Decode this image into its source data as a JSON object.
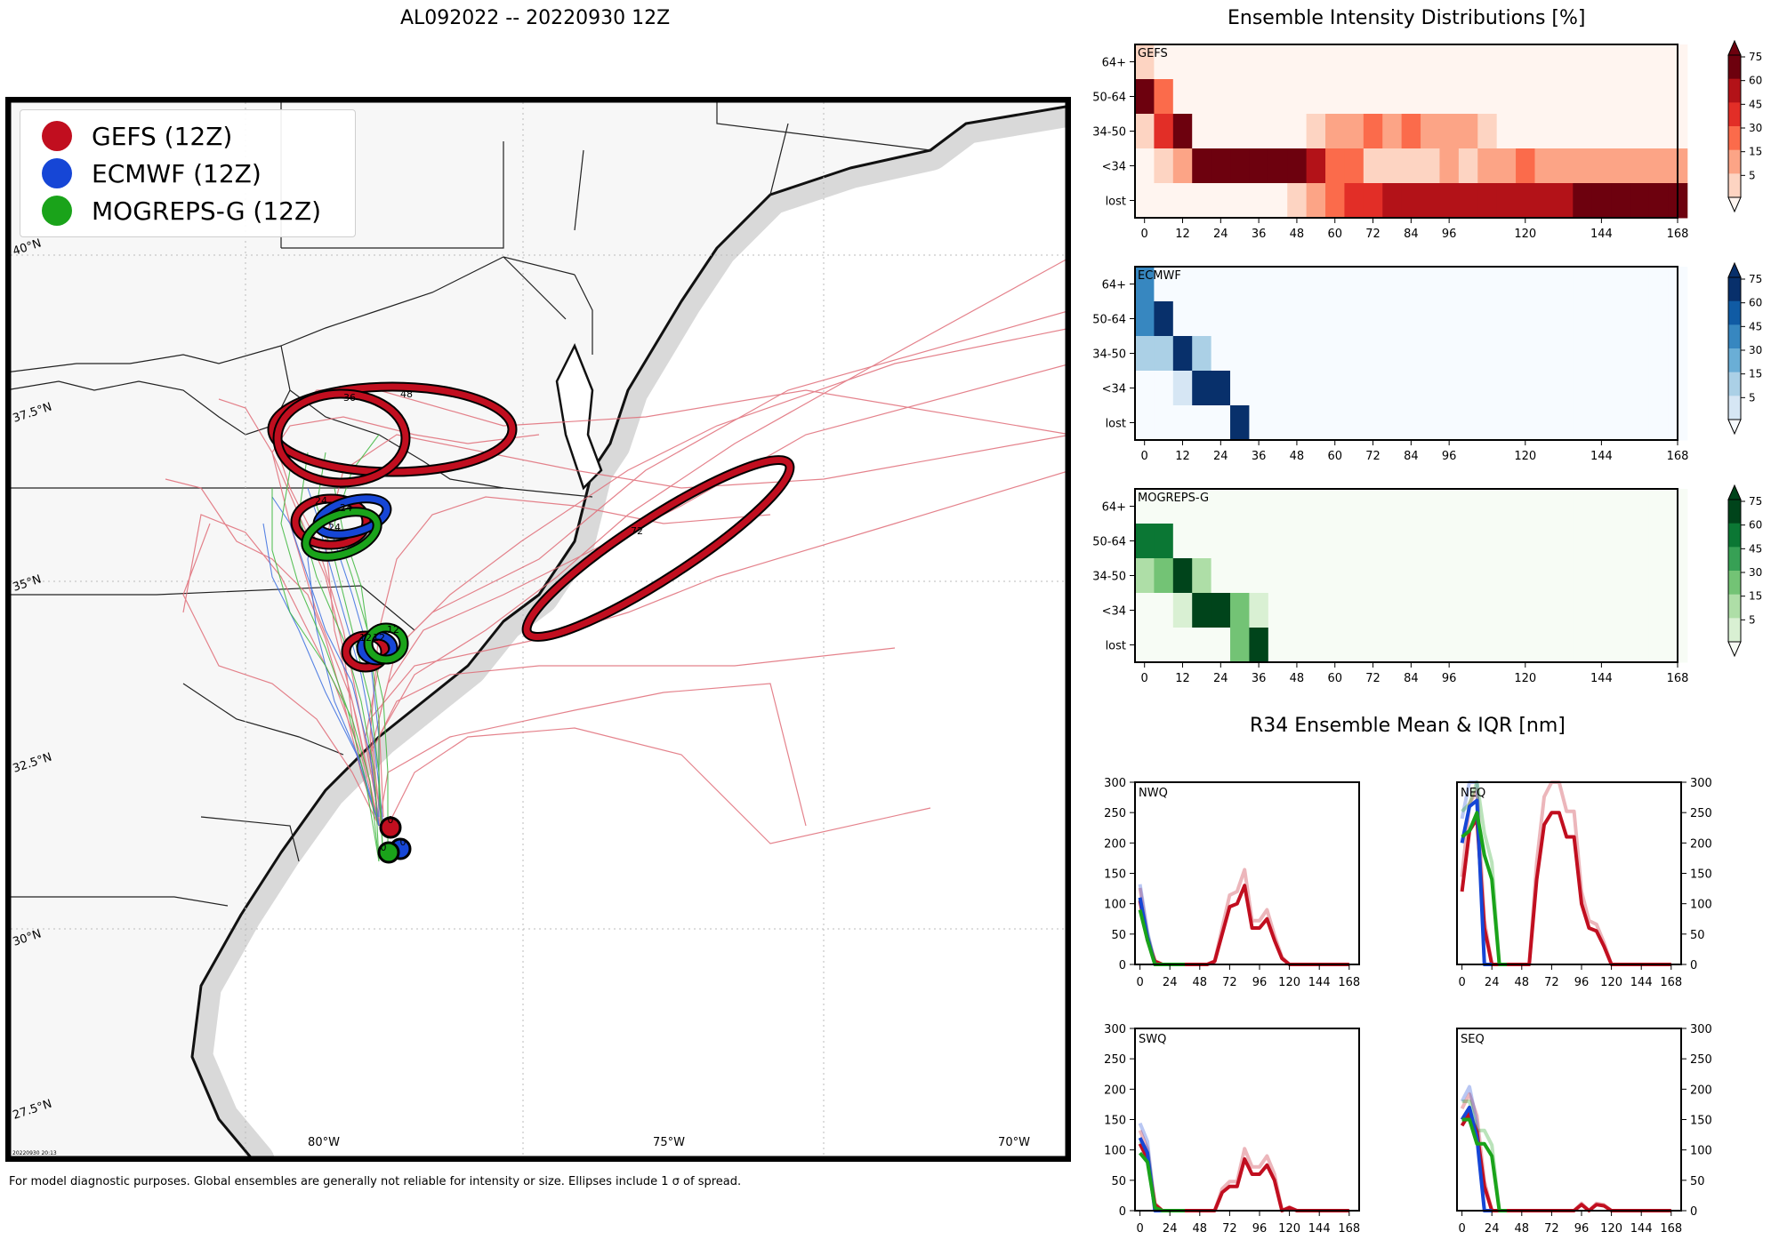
{
  "map": {
    "title": "AL092022 -- 20220930 12Z",
    "footnote": "For model diagnostic purposes. Global ensembles are generally not reliable for intensity or size. Ellipses include 1 σ of spread.",
    "timestamp": "20220930 20:13",
    "legend": [
      {
        "label": "GEFS (12Z)",
        "color": "#c10e1f"
      },
      {
        "label": "ECMWF (12Z)",
        "color": "#1646d6"
      },
      {
        "label": "MOGREPS-G (12Z)",
        "color": "#1aa31a"
      }
    ],
    "lat_labels": [
      "40°N",
      "37.5°N",
      "35°N",
      "32.5°N",
      "30°N",
      "27.5°N"
    ],
    "lon_labels": [
      "80°W",
      "75°W",
      "70°W"
    ],
    "ellipse_labels": {
      "gefs": [
        "0",
        "12",
        "24",
        "36",
        "48",
        "72"
      ],
      "ecmwf": [
        "0",
        "12",
        "24"
      ],
      "mogreps": [
        "0",
        "12",
        "24"
      ]
    }
  },
  "intensity": {
    "title": "Ensemble Intensity Distributions [%]",
    "ylabels": [
      "64+",
      "50-64",
      "34-50",
      "<34",
      "lost"
    ],
    "xticks": [
      "0",
      "12",
      "24",
      "36",
      "48",
      "60",
      "72",
      "84",
      "96",
      "120",
      "144",
      "168"
    ],
    "cbar_ticks": [
      "75",
      "60",
      "45",
      "30",
      "15",
      "5"
    ],
    "panels": [
      {
        "name": "GEFS",
        "palette": [
          "#fff5f0",
          "#fdd4c2",
          "#fca486",
          "#fb6b4b",
          "#e22e27",
          "#b31218",
          "#6d010e"
        ]
      },
      {
        "name": "ECMWF",
        "palette": [
          "#f7fbff",
          "#d6e6f4",
          "#abd0e6",
          "#6aaed6",
          "#3787c0",
          "#105ba4",
          "#08306b"
        ]
      },
      {
        "name": "MOGREPS-G",
        "palette": [
          "#f7fcf5",
          "#d9f0d3",
          "#aedea7",
          "#73c375",
          "#37a055",
          "#0b7734",
          "#00441b"
        ]
      }
    ]
  },
  "r34": {
    "title": "R34 Ensemble Mean & IQR [nm]",
    "yticks": [
      "300",
      "250",
      "200",
      "150",
      "100",
      "50",
      "0"
    ],
    "xticks": [
      "0",
      "24",
      "48",
      "72",
      "96",
      "120",
      "144",
      "168"
    ],
    "quadrants": [
      "NWQ",
      "NEQ",
      "SWQ",
      "SEQ"
    ]
  },
  "chart_data": [
    {
      "type": "heatmap",
      "title": "Ensemble Intensity Distributions [%] - GEFS",
      "x": [
        0,
        6,
        12,
        18,
        24,
        30,
        36,
        42,
        48,
        54,
        60,
        66,
        72,
        78,
        84,
        90,
        96,
        102,
        108,
        114,
        120,
        126,
        132,
        138,
        144,
        150,
        156,
        162,
        168
      ],
      "y": [
        "64+",
        "50-64",
        "34-50",
        "<34",
        "lost"
      ],
      "values": [
        [
          10,
          0,
          0,
          0,
          0,
          0,
          0,
          0,
          0,
          0,
          0,
          0,
          0,
          0,
          0,
          0,
          0,
          0,
          0,
          0,
          0,
          0,
          0,
          0,
          0,
          0,
          0,
          0,
          0
        ],
        [
          85,
          40,
          0,
          0,
          0,
          0,
          0,
          0,
          0,
          0,
          0,
          0,
          0,
          0,
          0,
          0,
          0,
          0,
          0,
          0,
          0,
          0,
          0,
          0,
          0,
          0,
          0,
          0,
          0
        ],
        [
          5,
          55,
          75,
          0,
          0,
          0,
          0,
          0,
          0,
          10,
          25,
          25,
          35,
          25,
          40,
          25,
          25,
          25,
          10,
          0,
          0,
          0,
          0,
          0,
          0,
          0,
          0,
          0,
          0
        ],
        [
          0,
          5,
          25,
          85,
          85,
          85,
          85,
          85,
          85,
          60,
          40,
          40,
          10,
          10,
          10,
          10,
          25,
          10,
          25,
          25,
          40,
          25,
          25,
          25,
          25,
          25,
          25,
          25,
          25
        ],
        [
          0,
          0,
          0,
          0,
          0,
          0,
          0,
          0,
          5,
          25,
          40,
          50,
          55,
          60,
          60,
          60,
          60,
          60,
          60,
          60,
          60,
          60,
          60,
          75,
          75,
          75,
          75,
          75,
          75
        ]
      ],
      "colorbar": {
        "label": "%",
        "ticks": [
          5,
          15,
          30,
          45,
          60,
          75
        ]
      }
    },
    {
      "type": "heatmap",
      "title": "Ensemble Intensity Distributions [%] - ECMWF",
      "x": [
        0,
        6,
        12,
        18,
        24,
        30,
        36,
        42,
        48,
        54,
        60,
        66,
        72,
        78,
        84,
        90,
        96,
        102,
        108,
        114,
        120,
        126,
        132,
        138,
        144,
        150,
        156,
        162,
        168
      ],
      "y": [
        "64+",
        "50-64",
        "34-50",
        "<34",
        "lost"
      ],
      "values": [
        [
          45,
          0,
          0,
          0,
          0,
          0,
          0,
          0,
          0,
          0,
          0,
          0,
          0,
          0,
          0,
          0,
          0,
          0,
          0,
          0,
          0,
          0,
          0,
          0,
          0,
          0,
          0,
          0,
          0
        ],
        [
          45,
          75,
          0,
          0,
          0,
          0,
          0,
          0,
          0,
          0,
          0,
          0,
          0,
          0,
          0,
          0,
          0,
          0,
          0,
          0,
          0,
          0,
          0,
          0,
          0,
          0,
          0,
          0,
          0
        ],
        [
          15,
          15,
          80,
          25,
          0,
          0,
          0,
          0,
          0,
          0,
          0,
          0,
          0,
          0,
          0,
          0,
          0,
          0,
          0,
          0,
          0,
          0,
          0,
          0,
          0,
          0,
          0,
          0,
          0
        ],
        [
          0,
          0,
          5,
          80,
          80,
          0,
          0,
          0,
          0,
          0,
          0,
          0,
          0,
          0,
          0,
          0,
          0,
          0,
          0,
          0,
          0,
          0,
          0,
          0,
          0,
          0,
          0,
          0,
          0
        ],
        [
          0,
          0,
          0,
          0,
          0,
          85,
          0,
          0,
          0,
          0,
          0,
          0,
          0,
          0,
          0,
          0,
          0,
          0,
          0,
          0,
          0,
          0,
          0,
          0,
          0,
          0,
          0,
          0,
          0
        ]
      ],
      "colorbar": {
        "label": "%",
        "ticks": [
          5,
          15,
          30,
          45,
          60,
          75
        ]
      }
    },
    {
      "type": "heatmap",
      "title": "Ensemble Intensity Distributions [%] - MOGREPS-G",
      "x": [
        0,
        6,
        12,
        18,
        24,
        30,
        36,
        42,
        48,
        54,
        60,
        66,
        72,
        78,
        84,
        90,
        96,
        102,
        108,
        114,
        120,
        126,
        132,
        138,
        144,
        150,
        156,
        162,
        168
      ],
      "y": [
        "64+",
        "50-64",
        "34-50",
        "<34",
        "lost"
      ],
      "values": [
        [
          0,
          0,
          0,
          0,
          0,
          0,
          0,
          0,
          0,
          0,
          0,
          0,
          0,
          0,
          0,
          0,
          0,
          0,
          0,
          0,
          0,
          0,
          0,
          0,
          0,
          0,
          0,
          0,
          0
        ],
        [
          65,
          65,
          0,
          0,
          0,
          0,
          0,
          0,
          0,
          0,
          0,
          0,
          0,
          0,
          0,
          0,
          0,
          0,
          0,
          0,
          0,
          0,
          0,
          0,
          0,
          0,
          0,
          0,
          0
        ],
        [
          20,
          35,
          85,
          20,
          0,
          0,
          0,
          0,
          0,
          0,
          0,
          0,
          0,
          0,
          0,
          0,
          0,
          0,
          0,
          0,
          0,
          0,
          0,
          0,
          0,
          0,
          0,
          0,
          0
        ],
        [
          0,
          0,
          5,
          85,
          85,
          35,
          10,
          0,
          0,
          0,
          0,
          0,
          0,
          0,
          0,
          0,
          0,
          0,
          0,
          0,
          0,
          0,
          0,
          0,
          0,
          0,
          0,
          0,
          0
        ],
        [
          0,
          0,
          0,
          0,
          0,
          35,
          85,
          0,
          0,
          0,
          0,
          0,
          0,
          0,
          0,
          0,
          0,
          0,
          0,
          0,
          0,
          0,
          0,
          0,
          0,
          0,
          0,
          0,
          0
        ]
      ],
      "colorbar": {
        "label": "%",
        "ticks": [
          5,
          15,
          30,
          45,
          60,
          75
        ]
      }
    },
    {
      "type": "line",
      "title": "R34 Ensemble Mean & IQR [nm] - NWQ",
      "xlim": [
        0,
        168
      ],
      "ylim": [
        0,
        300
      ],
      "series": [
        {
          "name": "GEFS",
          "color": "#c10e1f",
          "x": [
            0,
            6,
            12,
            18,
            24,
            30,
            36,
            42,
            48,
            54,
            60,
            66,
            72,
            78,
            84,
            90,
            96,
            102,
            108,
            114,
            120,
            126,
            132,
            138,
            144,
            150,
            156,
            162,
            168
          ],
          "values": [
            105,
            40,
            5,
            0,
            0,
            0,
            0,
            0,
            0,
            0,
            5,
            50,
            95,
            100,
            130,
            60,
            60,
            75,
            40,
            10,
            0,
            0,
            0,
            0,
            0,
            0,
            0,
            0,
            0
          ]
        },
        {
          "name": "ECMWF",
          "color": "#1646d6",
          "x": [
            0,
            6,
            12,
            18,
            24,
            30
          ],
          "values": [
            110,
            45,
            0,
            0,
            0,
            0
          ]
        },
        {
          "name": "MOGREPS-G",
          "color": "#1aa31a",
          "x": [
            0,
            6,
            12,
            18,
            24,
            30,
            36
          ],
          "values": [
            90,
            40,
            0,
            0,
            0,
            0,
            0
          ]
        }
      ]
    },
    {
      "type": "line",
      "title": "R34 Ensemble Mean & IQR [nm] - NEQ",
      "xlim": [
        0,
        168
      ],
      "ylim": [
        0,
        300
      ],
      "series": [
        {
          "name": "GEFS",
          "color": "#c10e1f",
          "x": [
            0,
            6,
            12,
            18,
            24,
            30,
            36,
            42,
            48,
            54,
            60,
            66,
            72,
            78,
            84,
            90,
            96,
            102,
            108,
            114,
            120,
            126,
            132,
            138,
            144,
            150,
            156,
            162,
            168
          ],
          "values": [
            120,
            220,
            240,
            60,
            0,
            0,
            0,
            0,
            0,
            0,
            140,
            230,
            250,
            250,
            210,
            210,
            100,
            60,
            55,
            30,
            0,
            0,
            0,
            0,
            0,
            0,
            0,
            0,
            0
          ]
        },
        {
          "name": "ECMWF",
          "color": "#1646d6",
          "x": [
            0,
            6,
            12,
            18,
            24
          ],
          "values": [
            200,
            260,
            270,
            0,
            0
          ]
        },
        {
          "name": "MOGREPS-G",
          "color": "#1aa31a",
          "x": [
            0,
            6,
            12,
            18,
            24,
            30,
            36
          ],
          "values": [
            210,
            220,
            250,
            180,
            140,
            0,
            0
          ]
        }
      ]
    },
    {
      "type": "line",
      "title": "R34 Ensemble Mean & IQR [nm] - SWQ",
      "xlim": [
        0,
        168
      ],
      "ylim": [
        0,
        300
      ],
      "series": [
        {
          "name": "GEFS",
          "color": "#c10e1f",
          "x": [
            0,
            6,
            12,
            18,
            24,
            30,
            36,
            42,
            48,
            54,
            60,
            66,
            72,
            78,
            84,
            90,
            96,
            102,
            108,
            114,
            120,
            126,
            132,
            138,
            144,
            150,
            156,
            162,
            168
          ],
          "values": [
            110,
            85,
            10,
            0,
            0,
            0,
            0,
            0,
            0,
            0,
            0,
            30,
            40,
            40,
            85,
            60,
            60,
            75,
            50,
            0,
            5,
            0,
            0,
            0,
            0,
            0,
            0,
            0,
            0
          ]
        },
        {
          "name": "ECMWF",
          "color": "#1646d6",
          "x": [
            0,
            6,
            12,
            18,
            24,
            30
          ],
          "values": [
            120,
            95,
            0,
            0,
            0,
            0
          ]
        },
        {
          "name": "MOGREPS-G",
          "color": "#1aa31a",
          "x": [
            0,
            6,
            12,
            18,
            24,
            30,
            36
          ],
          "values": [
            95,
            80,
            5,
            0,
            0,
            0,
            0
          ]
        }
      ]
    },
    {
      "type": "line",
      "title": "R34 Ensemble Mean & IQR [nm] - SEQ",
      "xlim": [
        0,
        168
      ],
      "ylim": [
        0,
        300
      ],
      "series": [
        {
          "name": "GEFS",
          "color": "#c10e1f",
          "x": [
            0,
            6,
            12,
            18,
            24,
            30,
            36,
            42,
            48,
            54,
            60,
            66,
            72,
            78,
            84,
            90,
            96,
            102,
            108,
            114,
            120,
            126,
            132,
            138,
            144,
            150,
            156,
            162,
            168
          ],
          "values": [
            140,
            160,
            130,
            40,
            0,
            0,
            0,
            0,
            0,
            0,
            0,
            0,
            0,
            0,
            0,
            0,
            10,
            0,
            10,
            8,
            0,
            0,
            0,
            0,
            0,
            0,
            0,
            0,
            0
          ]
        },
        {
          "name": "ECMWF",
          "color": "#1646d6",
          "x": [
            0,
            6,
            12,
            18,
            24
          ],
          "values": [
            150,
            170,
            120,
            0,
            0
          ]
        },
        {
          "name": "MOGREPS-G",
          "color": "#1aa31a",
          "x": [
            0,
            6,
            12,
            18,
            24,
            30,
            36
          ],
          "values": [
            150,
            150,
            110,
            110,
            90,
            0,
            0
          ]
        }
      ]
    }
  ]
}
